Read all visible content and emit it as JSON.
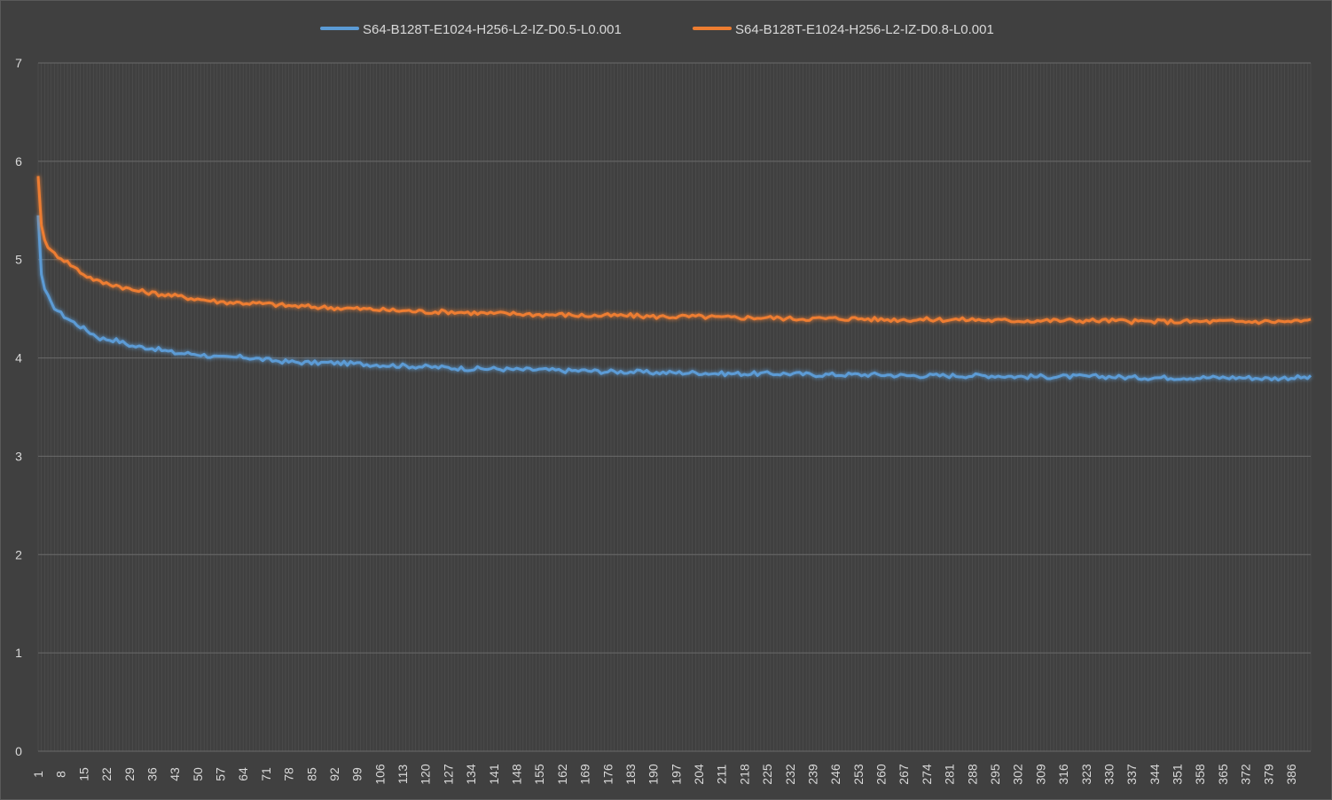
{
  "chart_data": {
    "type": "line",
    "title": "",
    "xlabel": "",
    "ylabel": "",
    "ylim": [
      0,
      7
    ],
    "yticks": [
      0,
      1,
      2,
      3,
      4,
      5,
      6,
      7
    ],
    "xlim": [
      1,
      392
    ],
    "xtick_start": 1,
    "xtick_step": 7,
    "grid": true,
    "legend_position": "top",
    "background_color": "#404040",
    "grid_color": "#5f5f5f",
    "text_color": "#d9d9d9",
    "series": [
      {
        "name": "S64-B128T-E1024-H256-L2-IZ-D0.5-L0.001",
        "color": "#5b9bd5",
        "x": [
          1,
          2,
          3,
          5,
          8,
          11,
          15,
          20,
          25,
          30,
          36,
          43,
          50,
          57,
          64,
          71,
          78,
          85,
          92,
          99,
          106,
          113,
          120,
          127,
          134,
          141,
          148,
          155,
          162,
          169,
          176,
          183,
          190,
          197,
          204,
          211,
          218,
          225,
          232,
          239,
          246,
          253,
          260,
          267,
          274,
          281,
          288,
          295,
          302,
          309,
          316,
          323,
          330,
          337,
          344,
          351,
          358,
          365,
          372,
          379,
          386,
          392
        ],
        "values": [
          5.45,
          4.85,
          4.7,
          4.55,
          4.45,
          4.38,
          4.3,
          4.2,
          4.18,
          4.12,
          4.1,
          4.05,
          4.04,
          4.0,
          4.01,
          3.98,
          3.96,
          3.95,
          3.95,
          3.94,
          3.93,
          3.92,
          3.91,
          3.9,
          3.89,
          3.89,
          3.88,
          3.88,
          3.87,
          3.87,
          3.86,
          3.86,
          3.85,
          3.85,
          3.85,
          3.84,
          3.84,
          3.84,
          3.84,
          3.83,
          3.83,
          3.83,
          3.83,
          3.82,
          3.82,
          3.82,
          3.82,
          3.82,
          3.81,
          3.81,
          3.81,
          3.81,
          3.81,
          3.8,
          3.8,
          3.8,
          3.8,
          3.8,
          3.8,
          3.79,
          3.8,
          3.8
        ]
      },
      {
        "name": "S64-B128T-E1024-H256-L2-IZ-D0.8-L0.001",
        "color": "#ed7d31",
        "x": [
          1,
          2,
          3,
          5,
          8,
          11,
          15,
          20,
          25,
          30,
          36,
          43,
          50,
          57,
          64,
          71,
          78,
          85,
          92,
          99,
          106,
          113,
          120,
          127,
          134,
          141,
          148,
          155,
          162,
          169,
          176,
          183,
          190,
          197,
          204,
          211,
          218,
          225,
          232,
          239,
          246,
          253,
          260,
          267,
          274,
          281,
          288,
          295,
          302,
          309,
          316,
          323,
          330,
          337,
          344,
          351,
          358,
          365,
          372,
          379,
          386,
          392
        ],
        "values": [
          5.85,
          5.35,
          5.2,
          5.08,
          5.02,
          4.95,
          4.85,
          4.77,
          4.74,
          4.69,
          4.66,
          4.63,
          4.6,
          4.57,
          4.56,
          4.55,
          4.53,
          4.52,
          4.51,
          4.5,
          4.49,
          4.48,
          4.47,
          4.47,
          4.46,
          4.45,
          4.45,
          4.44,
          4.44,
          4.43,
          4.43,
          4.43,
          4.42,
          4.42,
          4.42,
          4.41,
          4.41,
          4.41,
          4.4,
          4.4,
          4.4,
          4.4,
          4.39,
          4.39,
          4.39,
          4.39,
          4.39,
          4.38,
          4.38,
          4.38,
          4.38,
          4.38,
          4.38,
          4.37,
          4.37,
          4.37,
          4.37,
          4.37,
          4.37,
          4.37,
          4.37,
          4.38
        ]
      }
    ]
  }
}
